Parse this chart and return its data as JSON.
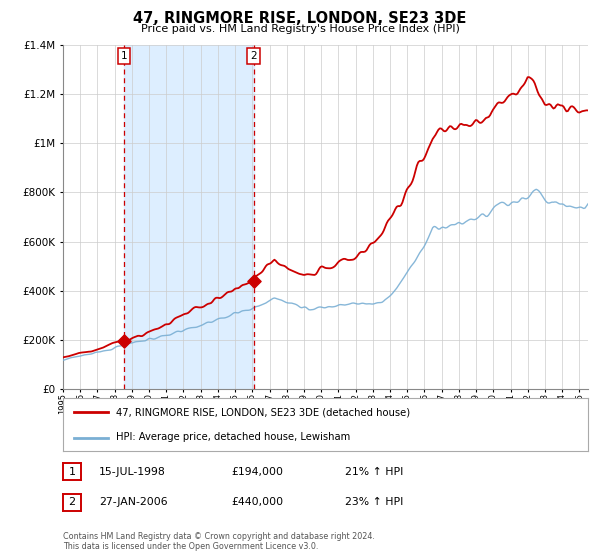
{
  "title": "47, RINGMORE RISE, LONDON, SE23 3DE",
  "subtitle": "Price paid vs. HM Land Registry's House Price Index (HPI)",
  "legend_line1": "47, RINGMORE RISE, LONDON, SE23 3DE (detached house)",
  "legend_line2": "HPI: Average price, detached house, Lewisham",
  "sale1_date": "15-JUL-1998",
  "sale1_price": 194000,
  "sale1_hpi": "21% ↑ HPI",
  "sale2_date": "27-JAN-2006",
  "sale2_price": 440000,
  "sale2_hpi": "23% ↑ HPI",
  "footnote": "Contains HM Land Registry data © Crown copyright and database right 2024.\nThis data is licensed under the Open Government Licence v3.0.",
  "red_color": "#cc0000",
  "blue_color": "#7aafd4",
  "shading_color": "#ddeeff",
  "grid_color": "#cccccc",
  "background_color": "#ffffff",
  "xmin": 1995.0,
  "xmax": 2025.5,
  "ymin": 0,
  "ymax": 1400000
}
